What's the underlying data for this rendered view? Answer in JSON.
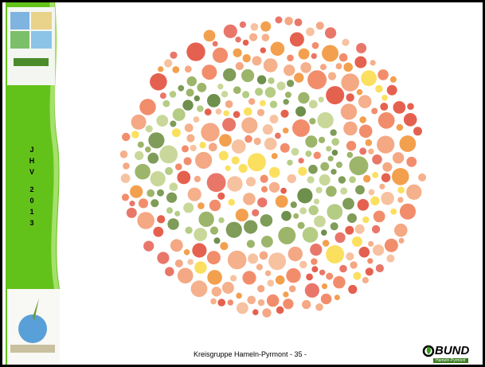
{
  "sidebar": {
    "letters": [
      "J",
      "H",
      "V",
      "2",
      "0",
      "1",
      "3"
    ]
  },
  "footer": {
    "text": "Kreisgruppe Hameln-Pyrmont - 35 -"
  },
  "logo": {
    "name": "BUND",
    "subtitle": "Hameln-Pyrmont"
  }
}
